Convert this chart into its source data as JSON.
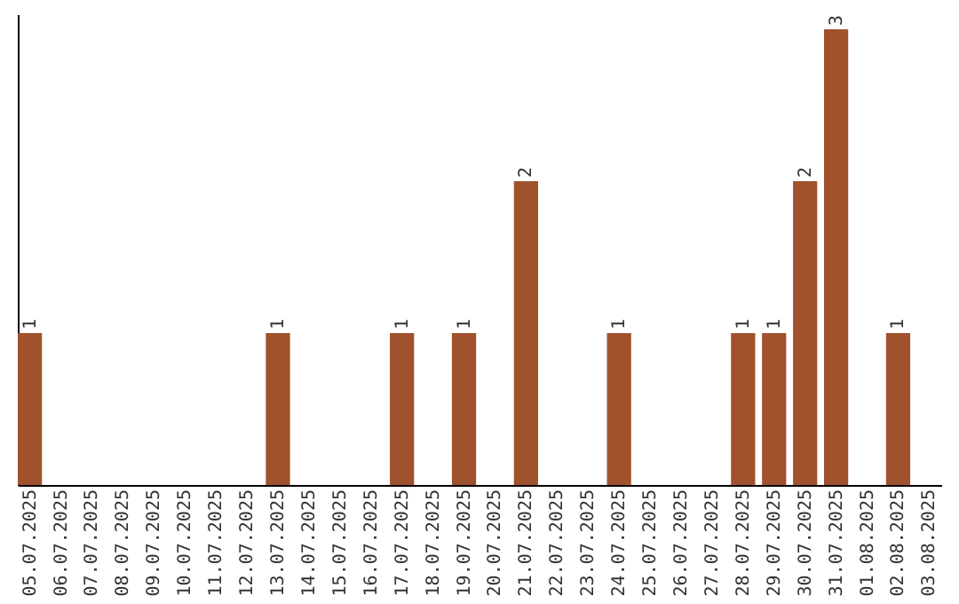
{
  "chart_data": {
    "type": "bar",
    "categories": [
      "05.07.2025",
      "06.07.2025",
      "07.07.2025",
      "08.07.2025",
      "09.07.2025",
      "10.07.2025",
      "11.07.2025",
      "12.07.2025",
      "13.07.2025",
      "14.07.2025",
      "15.07.2025",
      "16.07.2025",
      "17.07.2025",
      "18.07.2025",
      "19.07.2025",
      "20.07.2025",
      "21.07.2025",
      "22.07.2025",
      "23.07.2025",
      "24.07.2025",
      "25.07.2025",
      "26.07.2025",
      "27.07.2025",
      "28.07.2025",
      "29.07.2025",
      "30.07.2025",
      "31.07.2025",
      "01.08.2025",
      "02.08.2025",
      "03.08.2025"
    ],
    "values": [
      1,
      null,
      null,
      null,
      null,
      null,
      null,
      null,
      1,
      null,
      null,
      null,
      1,
      null,
      1,
      null,
      2,
      null,
      null,
      1,
      null,
      null,
      null,
      1,
      1,
      2,
      3,
      null,
      1,
      null
    ],
    "color": "#a0522d",
    "ylim": [
      0,
      3.1
    ],
    "data_labels": true,
    "tick_labels": "x",
    "grid": false
  }
}
